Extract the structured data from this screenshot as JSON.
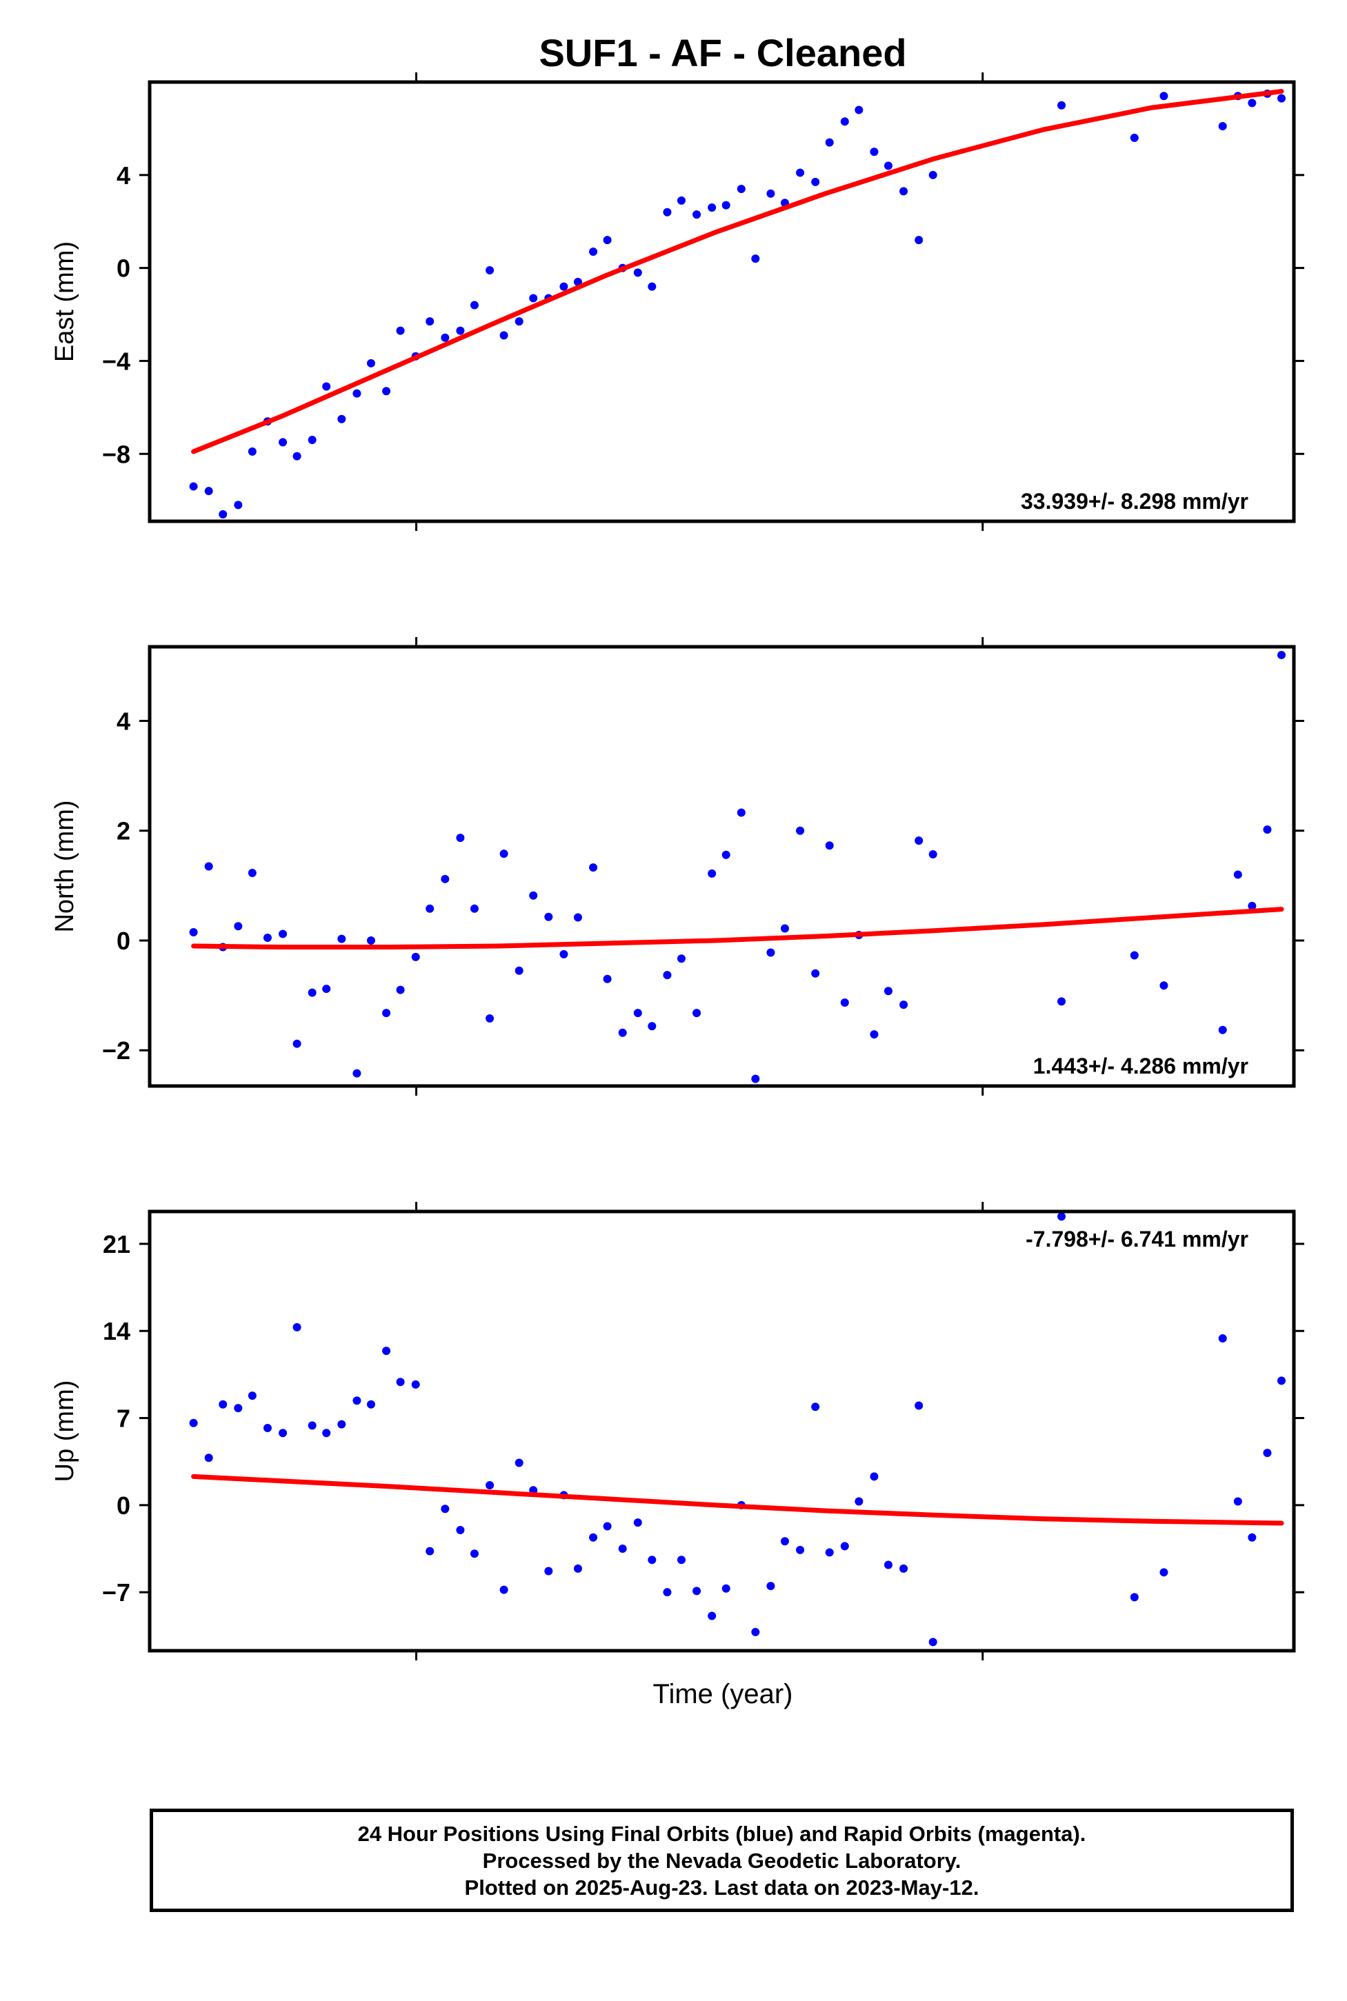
{
  "title": "SUF1  - AF - Cleaned",
  "xlabel": "Time (year)",
  "caption": {
    "line1": "24 Hour Positions Using Final Orbits (blue) and Rapid Orbits (magenta).",
    "line2": "Processed by the Nevada Geodetic Laboratory.",
    "line3": "Plotted on 2025-Aug-23. Last data on 2023-May-12."
  },
  "colors": {
    "points": "#0000ff",
    "fit": "#ff0000",
    "frame": "#000000"
  },
  "chart_data": [
    {
      "type": "scatter",
      "panel": "east",
      "ylabel": "East (mm)",
      "rate_label": "33.939+/- 8.298 mm/yr",
      "yticks": [
        -8,
        -4,
        0,
        4
      ],
      "ylim": [
        -10.9,
        8.0
      ],
      "xlim": [
        0,
        1000
      ],
      "xticks_unlabeled": [
        233,
        728
      ],
      "points": [
        [
          20,
          -9.4
        ],
        [
          34,
          -9.6
        ],
        [
          47,
          -10.6
        ],
        [
          61,
          -10.2
        ],
        [
          74,
          -7.9
        ],
        [
          88,
          -6.6
        ],
        [
          102,
          -7.5
        ],
        [
          115,
          -8.1
        ],
        [
          129,
          -7.4
        ],
        [
          142,
          -5.1
        ],
        [
          156,
          -6.5
        ],
        [
          170,
          -5.4
        ],
        [
          183,
          -4.1
        ],
        [
          197,
          -5.3
        ],
        [
          210,
          -2.7
        ],
        [
          224,
          -3.8
        ],
        [
          237,
          -2.3
        ],
        [
          251,
          -3.0
        ],
        [
          265,
          -2.7
        ],
        [
          278,
          -1.6
        ],
        [
          292,
          -0.1
        ],
        [
          305,
          -2.9
        ],
        [
          319,
          -2.3
        ],
        [
          332,
          -1.3
        ],
        [
          346,
          -1.3
        ],
        [
          360,
          -0.8
        ],
        [
          373,
          -0.6
        ],
        [
          387,
          0.7
        ],
        [
          400,
          1.2
        ],
        [
          414,
          0.0
        ],
        [
          428,
          -0.2
        ],
        [
          441,
          -0.8
        ],
        [
          455,
          2.4
        ],
        [
          468,
          2.9
        ],
        [
          482,
          2.3
        ],
        [
          496,
          2.6
        ],
        [
          509,
          2.7
        ],
        [
          523,
          3.4
        ],
        [
          536,
          0.4
        ],
        [
          550,
          3.2
        ],
        [
          563,
          2.8
        ],
        [
          577,
          4.1
        ],
        [
          591,
          3.7
        ],
        [
          604,
          5.4
        ],
        [
          618,
          6.3
        ],
        [
          631,
          6.8
        ],
        [
          645,
          5.0
        ],
        [
          658,
          4.4
        ],
        [
          672,
          3.3
        ],
        [
          686,
          1.2
        ],
        [
          699,
          4.0
        ],
        [
          817,
          7.0
        ],
        [
          884,
          5.6
        ],
        [
          911,
          7.4
        ],
        [
          965,
          6.1
        ],
        [
          979,
          7.4
        ],
        [
          992,
          7.1
        ],
        [
          1006,
          7.5
        ],
        [
          1019,
          7.3
        ]
      ],
      "fit": [
        [
          20,
          -7.9
        ],
        [
          100,
          -6.4
        ],
        [
          200,
          -4.35
        ],
        [
          300,
          -2.3
        ],
        [
          400,
          -0.3
        ],
        [
          500,
          1.55
        ],
        [
          600,
          3.2
        ],
        [
          700,
          4.7
        ],
        [
          800,
          5.95
        ],
        [
          900,
          6.9
        ],
        [
          1019,
          7.6
        ]
      ]
    },
    {
      "type": "scatter",
      "panel": "north",
      "ylabel": "North (mm)",
      "rate_label": "1.443+/- 4.286 mm/yr",
      "yticks": [
        -2,
        0,
        2,
        4
      ],
      "ylim": [
        -2.65,
        5.35
      ],
      "xlim": [
        0,
        1000
      ],
      "xticks_unlabeled": [
        233,
        728
      ],
      "points": [
        [
          20,
          0.15
        ],
        [
          34,
          1.35
        ],
        [
          47,
          -0.12
        ],
        [
          61,
          0.26
        ],
        [
          74,
          1.23
        ],
        [
          88,
          0.05
        ],
        [
          102,
          0.12
        ],
        [
          115,
          -1.88
        ],
        [
          129,
          -0.95
        ],
        [
          142,
          -0.88
        ],
        [
          156,
          0.03
        ],
        [
          170,
          -2.42
        ],
        [
          183,
          0.0
        ],
        [
          197,
          -1.32
        ],
        [
          210,
          -0.9
        ],
        [
          224,
          -0.3
        ],
        [
          237,
          0.58
        ],
        [
          251,
          1.12
        ],
        [
          265,
          1.87
        ],
        [
          278,
          0.58
        ],
        [
          292,
          -1.42
        ],
        [
          305,
          1.58
        ],
        [
          319,
          -0.55
        ],
        [
          332,
          0.82
        ],
        [
          346,
          0.43
        ],
        [
          360,
          -0.25
        ],
        [
          373,
          0.42
        ],
        [
          387,
          1.33
        ],
        [
          400,
          -0.7
        ],
        [
          414,
          -1.68
        ],
        [
          428,
          -1.32
        ],
        [
          441,
          -1.56
        ],
        [
          455,
          -0.63
        ],
        [
          468,
          -0.33
        ],
        [
          482,
          -1.32
        ],
        [
          496,
          1.22
        ],
        [
          509,
          1.56
        ],
        [
          523,
          2.33
        ],
        [
          536,
          -2.52
        ],
        [
          550,
          -0.22
        ],
        [
          563,
          0.22
        ],
        [
          577,
          2.0
        ],
        [
          591,
          -0.6
        ],
        [
          604,
          1.73
        ],
        [
          618,
          -1.13
        ],
        [
          631,
          0.1
        ],
        [
          645,
          -1.71
        ],
        [
          658,
          -0.92
        ],
        [
          672,
          -1.17
        ],
        [
          686,
          1.82
        ],
        [
          699,
          1.57
        ],
        [
          817,
          -1.11
        ],
        [
          884,
          -0.27
        ],
        [
          911,
          -0.82
        ],
        [
          965,
          -1.63
        ],
        [
          979,
          1.2
        ],
        [
          992,
          0.63
        ],
        [
          1006,
          2.02
        ],
        [
          1019,
          5.2
        ]
      ],
      "fit": [
        [
          20,
          -0.1
        ],
        [
          100,
          -0.12
        ],
        [
          200,
          -0.12
        ],
        [
          300,
          -0.1
        ],
        [
          400,
          -0.05
        ],
        [
          500,
          0.0
        ],
        [
          600,
          0.08
        ],
        [
          700,
          0.18
        ],
        [
          800,
          0.29
        ],
        [
          900,
          0.42
        ],
        [
          1019,
          0.57
        ]
      ]
    },
    {
      "type": "scatter",
      "panel": "up",
      "ylabel": "Up (mm)",
      "rate_label": "-7.798+/- 6.741 mm/yr",
      "yticks": [
        -7,
        0,
        7,
        14,
        21
      ],
      "ylim": [
        -11.7,
        23.6
      ],
      "xlim": [
        0,
        1000
      ],
      "xticks_unlabeled": [
        233,
        728
      ],
      "points": [
        [
          20,
          6.6
        ],
        [
          34,
          3.8
        ],
        [
          47,
          8.1
        ],
        [
          61,
          7.8
        ],
        [
          74,
          8.8
        ],
        [
          88,
          6.2
        ],
        [
          102,
          5.8
        ],
        [
          115,
          14.3
        ],
        [
          129,
          6.4
        ],
        [
          142,
          5.8
        ],
        [
          156,
          6.5
        ],
        [
          170,
          8.4
        ],
        [
          183,
          8.1
        ],
        [
          197,
          12.4
        ],
        [
          210,
          9.9
        ],
        [
          224,
          9.7
        ],
        [
          237,
          -3.7
        ],
        [
          251,
          -0.3
        ],
        [
          265,
          -2.0
        ],
        [
          278,
          -3.9
        ],
        [
          292,
          1.6
        ],
        [
          305,
          -6.8
        ],
        [
          319,
          3.4
        ],
        [
          332,
          1.2
        ],
        [
          346,
          -5.3
        ],
        [
          360,
          0.8
        ],
        [
          373,
          -5.1
        ],
        [
          387,
          -2.6
        ],
        [
          400,
          -1.7
        ],
        [
          414,
          -3.5
        ],
        [
          428,
          -1.4
        ],
        [
          441,
          -4.4
        ],
        [
          455,
          -7.0
        ],
        [
          468,
          -4.4
        ],
        [
          482,
          -6.9
        ],
        [
          496,
          -8.9
        ],
        [
          509,
          -6.7
        ],
        [
          523,
          0.0
        ],
        [
          536,
          -10.2
        ],
        [
          550,
          -6.5
        ],
        [
          563,
          -2.9
        ],
        [
          577,
          -3.6
        ],
        [
          591,
          7.9
        ],
        [
          604,
          -3.8
        ],
        [
          618,
          -3.3
        ],
        [
          631,
          0.3
        ],
        [
          645,
          2.3
        ],
        [
          658,
          -4.8
        ],
        [
          672,
          -5.1
        ],
        [
          686,
          8.0
        ],
        [
          699,
          -11.0
        ],
        [
          817,
          23.2
        ],
        [
          884,
          -7.4
        ],
        [
          911,
          -5.4
        ],
        [
          965,
          13.4
        ],
        [
          979,
          0.3
        ],
        [
          992,
          -2.6
        ],
        [
          1006,
          4.2
        ],
        [
          1019,
          10.0
        ]
      ],
      "fit": [
        [
          20,
          2.3
        ],
        [
          100,
          1.95
        ],
        [
          200,
          1.5
        ],
        [
          300,
          1.0
        ],
        [
          400,
          0.5
        ],
        [
          500,
          0.0
        ],
        [
          600,
          -0.45
        ],
        [
          700,
          -0.8
        ],
        [
          800,
          -1.1
        ],
        [
          900,
          -1.3
        ],
        [
          1019,
          -1.45
        ]
      ]
    }
  ]
}
